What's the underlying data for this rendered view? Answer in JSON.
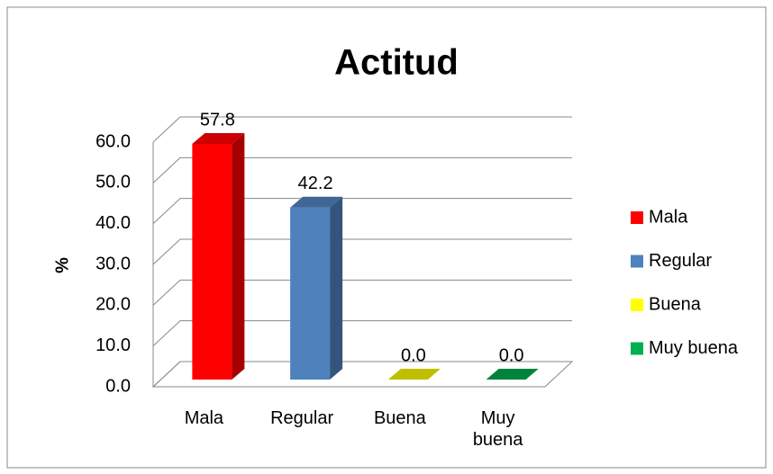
{
  "chart_data": {
    "type": "bar3d",
    "title": "Actitud",
    "ylabel": "%",
    "categories": [
      "Mala",
      "Regular",
      "Buena",
      "Muy buena"
    ],
    "values": [
      57.8,
      42.2,
      0,
      0
    ],
    "value_labels": [
      "57.8",
      "42.2",
      "0.0",
      "0.0"
    ],
    "colors": [
      "#ff0000",
      "#4f81bd",
      "#ffff00",
      "#00b050"
    ],
    "ylim": [
      0,
      60
    ],
    "yticks": [
      {
        "value": 0,
        "label": "0.0"
      },
      {
        "value": 10,
        "label": "10.0"
      },
      {
        "value": 20,
        "label": "20.0"
      },
      {
        "value": 30,
        "label": "30.0"
      },
      {
        "value": 40,
        "label": "40.0"
      },
      {
        "value": 50,
        "label": "50.0"
      },
      {
        "value": 60,
        "label": "60.0"
      }
    ],
    "grid": true,
    "legend": "right"
  }
}
